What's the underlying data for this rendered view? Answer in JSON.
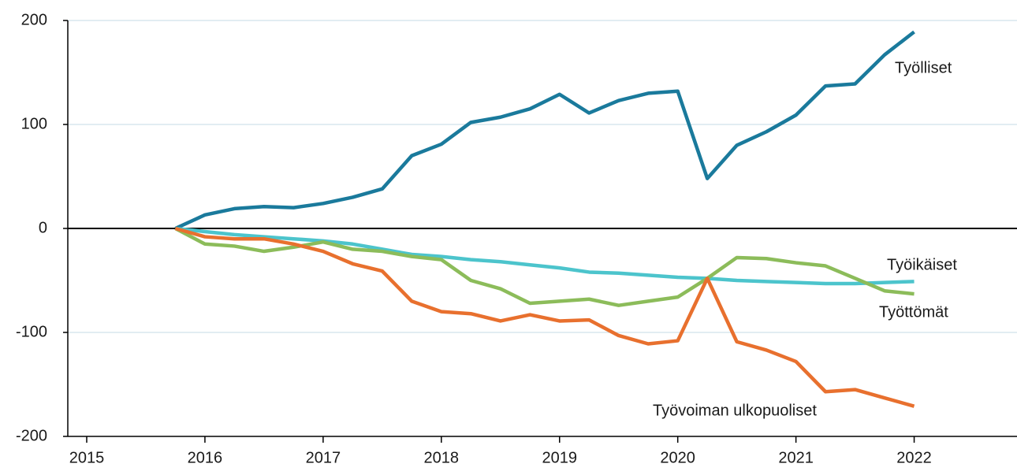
{
  "chart_data": {
    "type": "line",
    "x": [
      2015.75,
      2016,
      2016.25,
      2016.5,
      2016.75,
      2017,
      2017.25,
      2017.5,
      2017.75,
      2018,
      2018.25,
      2018.5,
      2018.75,
      2019,
      2019.25,
      2019.5,
      2019.75,
      2020,
      2020.25,
      2020.5,
      2020.75,
      2021,
      2021.25,
      2021.5,
      2021.75,
      2022
    ],
    "series": [
      {
        "name": "Työlliset",
        "color": "#1a7a9c",
        "values": [
          0,
          13,
          19,
          21,
          20,
          24,
          30,
          38,
          70,
          81,
          102,
          107,
          115,
          129,
          111,
          123,
          130,
          132,
          48,
          80,
          93,
          109,
          137,
          139,
          167,
          189
        ]
      },
      {
        "name": "Työikäiset",
        "color": "#4cc4cc",
        "values": [
          0,
          -3,
          -6,
          -8,
          -10,
          -12,
          -15,
          -20,
          -25,
          -27,
          -30,
          -32,
          -35,
          -38,
          -42,
          -43,
          -45,
          -47,
          -48,
          -50,
          -51,
          -52,
          -53,
          -53,
          -52,
          -51
        ]
      },
      {
        "name": "Työttömät",
        "color": "#8cbc5a",
        "values": [
          0,
          -15,
          -17,
          -22,
          -18,
          -13,
          -20,
          -22,
          -27,
          -30,
          -50,
          -58,
          -72,
          -70,
          -68,
          -74,
          -70,
          -66,
          -48,
          -28,
          -29,
          -33,
          -36,
          -48,
          -60,
          -63
        ]
      },
      {
        "name": "Työvoiman ulkopuoliset",
        "color": "#e8702e",
        "values": [
          0,
          -8,
          -10,
          -10,
          -15,
          -22,
          -34,
          -41,
          -70,
          -80,
          -82,
          -89,
          -83,
          -89,
          -88,
          -103,
          -111,
          -108,
          -48,
          -109,
          -117,
          -128,
          -157,
          -155,
          -163,
          -171
        ]
      }
    ],
    "xlim": [
      2014.84,
      2022.87
    ],
    "xticks": [
      2015,
      2016,
      2017,
      2018,
      2019,
      2020,
      2021,
      2022
    ],
    "ylim": [
      -200,
      200
    ],
    "yticks": [
      -200,
      -100,
      0,
      100,
      200
    ],
    "grid": true
  }
}
